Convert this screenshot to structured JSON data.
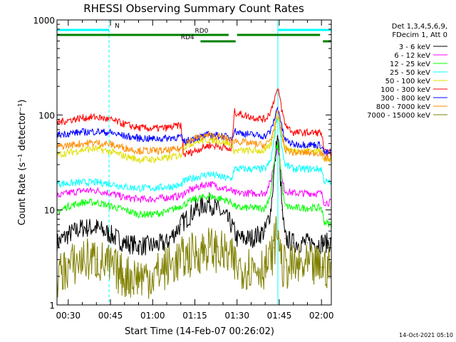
{
  "chart_data": {
    "type": "line",
    "title": "RHESSI Observing Summary Count Rates",
    "xlabel": "Start Time (14-Feb-07 00:26:02)",
    "ylabel": "Count Rate (s⁻¹ detector⁻¹)",
    "y_scale": "log",
    "ylim": [
      1,
      1000
    ],
    "xlim_minutes": [
      26.0,
      123.5
    ],
    "y_ticks": [
      {
        "v": 1,
        "label": "1"
      },
      {
        "v": 10,
        "label": "10"
      },
      {
        "v": 100,
        "label": "100"
      },
      {
        "v": 1000,
        "label": "1000"
      }
    ],
    "x_ticks": [
      {
        "m": 30,
        "label": "00:30"
      },
      {
        "m": 45,
        "label": "00:45"
      },
      {
        "m": 60,
        "label": "01:00"
      },
      {
        "m": 75,
        "label": "01:15"
      },
      {
        "m": 90,
        "label": "01:30"
      },
      {
        "m": 105,
        "label": "01:45"
      },
      {
        "m": 120,
        "label": "02:00"
      }
    ],
    "legend_header": [
      "Det 1,3,4,5,6,9,",
      "FDecim 1, Att 0"
    ],
    "bars": [
      {
        "label": "N",
        "color": "#00ffff",
        "segments": [
          [
            26.0,
            44.5
          ],
          [
            104.5,
            123.5
          ]
        ],
        "label_at": 46.5
      },
      {
        "label": "RD0",
        "color": "#008000",
        "segments": [
          [
            26.0,
            87.0
          ],
          [
            90.0,
            119.5
          ]
        ],
        "label_at": 75.0
      },
      {
        "label": "RD4",
        "color": "#008000",
        "segments": [
          [
            77.0,
            89.5
          ],
          [
            120.5,
            123.5
          ]
        ],
        "label_at": 70.0
      }
    ],
    "vlines": [
      {
        "m": 26.0,
        "color": "#00ffff",
        "style": "solid"
      },
      {
        "m": 44.5,
        "color": "#00ffff",
        "style": "dashed"
      },
      {
        "m": 104.5,
        "color": "#00ffff",
        "style": "solid"
      },
      {
        "m": 123.5,
        "color": "#00ffff",
        "style": "dashed"
      }
    ],
    "series": [
      {
        "name": "3 - 6 keV",
        "color": "#000000",
        "x": [
          26,
          30,
          35,
          40,
          45,
          50,
          55,
          60,
          65,
          70,
          75,
          80,
          85,
          88,
          90,
          95,
          100,
          102,
          103,
          104,
          104.5,
          105,
          106,
          107,
          110,
          115,
          120,
          121,
          123.5
        ],
        "y": [
          4.5,
          5.5,
          6.5,
          6.5,
          5.5,
          4.5,
          4.2,
          4.2,
          4.5,
          7,
          10,
          12,
          9,
          7,
          5,
          5,
          6,
          10,
          22,
          48,
          60,
          38,
          10,
          5,
          4.5,
          4.5,
          4.5,
          4.5,
          4.5
        ]
      },
      {
        "name": "6 - 12 keV",
        "color": "#ff00ff",
        "x": [
          26,
          30,
          35,
          40,
          45,
          50,
          55,
          60,
          65,
          70,
          71,
          75,
          80,
          85,
          88,
          89,
          90,
          95,
          100,
          102,
          103,
          104,
          104.5,
          105,
          106,
          107,
          110,
          115,
          120,
          121,
          123.5
        ],
        "y": [
          14,
          15,
          16,
          16,
          15,
          13.5,
          13,
          13,
          13.5,
          14,
          15,
          17,
          19,
          17,
          16,
          15,
          15,
          15,
          15,
          20,
          30,
          42,
          45,
          38,
          20,
          16,
          15,
          15,
          15,
          12,
          12
        ]
      },
      {
        "name": "12 - 25 keV",
        "color": "#00ff00",
        "x": [
          26,
          30,
          35,
          40,
          45,
          50,
          55,
          60,
          65,
          70,
          75,
          80,
          85,
          88,
          90,
          95,
          100,
          102,
          103,
          104,
          104.5,
          105,
          106,
          107,
          110,
          115,
          120,
          121,
          123.5
        ],
        "y": [
          9.5,
          11,
          12,
          12,
          11,
          10,
          9,
          9,
          9.5,
          11,
          13,
          14,
          13,
          12,
          10.5,
          10.5,
          10.5,
          15,
          28,
          45,
          48,
          40,
          18,
          11,
          10.5,
          10.5,
          10.5,
          7.5,
          7
        ]
      },
      {
        "name": "25 - 50 keV",
        "color": "#00ffff",
        "x": [
          26,
          30,
          35,
          40,
          45,
          50,
          55,
          60,
          65,
          70,
          71,
          75,
          80,
          85,
          88,
          89,
          90,
          95,
          100,
          102,
          103,
          104,
          104.5,
          105,
          106,
          107,
          110,
          115,
          120,
          121,
          123.5
        ],
        "y": [
          19,
          19,
          19.5,
          19.5,
          19,
          17.5,
          17,
          17,
          17.5,
          18,
          20,
          22,
          24,
          22,
          21,
          27,
          27,
          27,
          27,
          33,
          50,
          85,
          100,
          85,
          45,
          30,
          27,
          27,
          27,
          20,
          19
        ]
      },
      {
        "name": "50 - 100 keV",
        "color": "#e0e000",
        "x": [
          26,
          30,
          35,
          40,
          45,
          50,
          55,
          60,
          65,
          70,
          71,
          75,
          80,
          85,
          88,
          89,
          90,
          95,
          100,
          102,
          103,
          104,
          104.5,
          105,
          106,
          107,
          110,
          115,
          120,
          121,
          123.5
        ],
        "y": [
          38,
          40,
          43,
          44,
          41,
          37,
          34,
          34,
          35,
          38,
          46,
          52,
          55,
          52,
          49,
          42,
          42,
          42,
          42,
          48,
          62,
          90,
          105,
          90,
          60,
          45,
          42,
          42,
          42,
          34,
          34
        ]
      },
      {
        "name": "100 - 300 keV",
        "color": "#ff0000",
        "x": [
          26,
          30,
          35,
          40,
          45,
          50,
          55,
          60,
          65,
          70,
          71,
          75,
          80,
          85,
          88,
          89,
          90,
          95,
          100,
          102,
          103,
          104,
          104.5,
          105,
          106,
          107,
          110,
          115,
          120,
          121,
          123.5
        ],
        "y": [
          83,
          88,
          93,
          95,
          89,
          80,
          73,
          72,
          73,
          78,
          38,
          42,
          48,
          46,
          42,
          108,
          104,
          95,
          90,
          110,
          140,
          172,
          180,
          165,
          110,
          80,
          65,
          65,
          65,
          40,
          40
        ]
      },
      {
        "name": "300 - 800 keV",
        "color": "#0000ff",
        "x": [
          26,
          30,
          35,
          40,
          45,
          50,
          55,
          60,
          65,
          70,
          71,
          75,
          80,
          85,
          88,
          89,
          90,
          95,
          100,
          102,
          103,
          104,
          104.5,
          105,
          106,
          107,
          110,
          115,
          120,
          121,
          123.5
        ],
        "y": [
          62,
          64,
          66,
          67,
          65,
          60,
          57,
          56,
          57,
          59,
          52,
          57,
          62,
          60,
          57,
          68,
          66,
          62,
          60,
          68,
          85,
          110,
          120,
          105,
          72,
          55,
          49,
          49,
          48,
          40,
          40
        ]
      },
      {
        "name": "800 - 7000 keV",
        "color": "#ff8c00",
        "x": [
          26,
          30,
          35,
          40,
          45,
          50,
          55,
          60,
          65,
          70,
          71,
          75,
          80,
          85,
          88,
          89,
          90,
          95,
          100,
          102,
          103,
          104,
          104.5,
          105,
          106,
          107,
          110,
          115,
          120,
          121,
          123.5
        ],
        "y": [
          46,
          48,
          50,
          51,
          49,
          45,
          42,
          42,
          42,
          44,
          50,
          57,
          61,
          58,
          54,
          54,
          53,
          50,
          48,
          55,
          70,
          95,
          105,
          92,
          60,
          44,
          40,
          40,
          40,
          35,
          35
        ]
      },
      {
        "name": "7000 - 15000 keV",
        "color": "#808000",
        "x": [
          26,
          30,
          35,
          40,
          45,
          50,
          55,
          60,
          65,
          70,
          75,
          80,
          85,
          88,
          90,
          95,
          100,
          102,
          103,
          104,
          104.5,
          105,
          106,
          107,
          110,
          115,
          120,
          121,
          123.5
        ],
        "y": [
          2,
          2.5,
          3,
          3,
          2.5,
          2,
          2,
          2,
          2.5,
          3,
          3.5,
          4,
          3.5,
          3,
          2.5,
          2.5,
          2.5,
          3,
          4,
          5.5,
          6,
          5,
          2.5,
          2.5,
          2.5,
          2.5,
          2.5,
          2.5,
          2.5
        ]
      }
    ]
  },
  "footer": {
    "date": "14-Oct-2021 05:10"
  }
}
